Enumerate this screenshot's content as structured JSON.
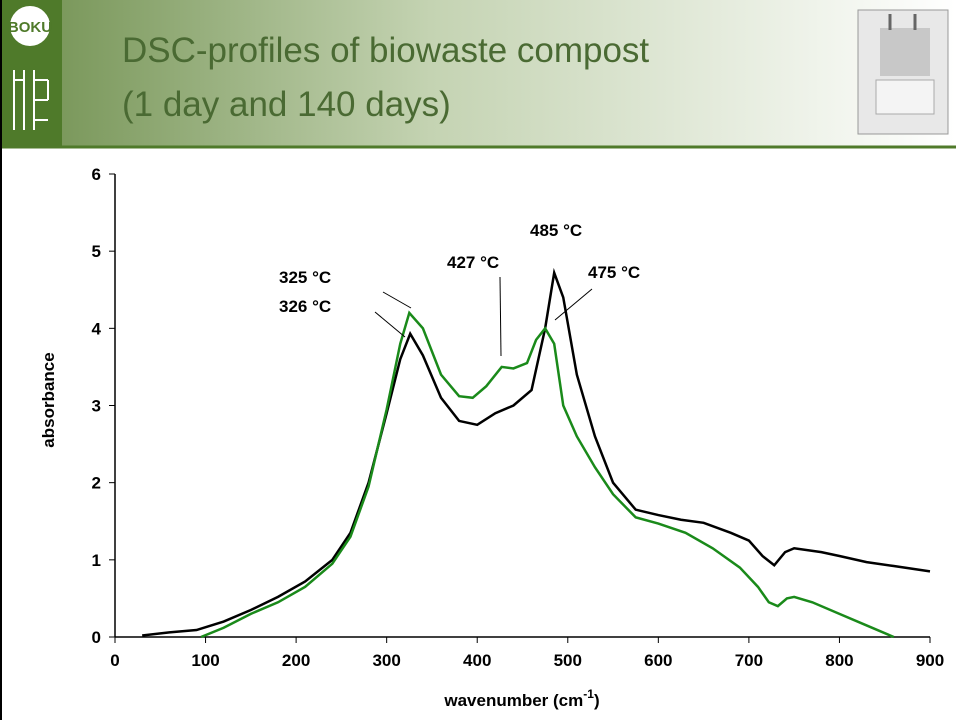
{
  "logo": "BOKU",
  "chart_data": {
    "type": "line",
    "title": "DSC-profiles of biowaste compost",
    "subtitle": "(1 day and 140 days)",
    "y_label": "absorbance",
    "x_label": [
      "wavenumber (cm",
      "-1",
      ")"
    ],
    "xlim": [
      0,
      900
    ],
    "xticks": [
      0,
      100,
      200,
      300,
      400,
      500,
      600,
      700,
      800,
      900
    ],
    "ylim": [
      0,
      6
    ],
    "yticks": [
      0,
      1,
      2,
      3,
      4,
      5,
      6
    ],
    "grid": false,
    "annotations": [
      "325 °C",
      "326 °C",
      "427 °C",
      "485 °C",
      "475 °C"
    ],
    "series": [
      {
        "color": "#000000",
        "x": [
          30,
          60,
          90,
          120,
          150,
          180,
          210,
          240,
          260,
          280,
          300,
          315,
          326,
          340,
          360,
          380,
          400,
          420,
          440,
          460,
          475,
          485,
          495,
          510,
          530,
          550,
          575,
          600,
          625,
          650,
          680,
          700,
          715,
          728,
          740,
          750,
          780,
          800,
          830,
          860,
          900
        ],
        "values": [
          0.02,
          0.06,
          0.09,
          0.2,
          0.35,
          0.52,
          0.72,
          1.0,
          1.35,
          2.0,
          2.9,
          3.6,
          3.93,
          3.65,
          3.1,
          2.8,
          2.75,
          2.9,
          3.0,
          3.2,
          4.0,
          4.72,
          4.4,
          3.4,
          2.6,
          2.0,
          1.65,
          1.58,
          1.52,
          1.48,
          1.35,
          1.25,
          1.05,
          0.93,
          1.1,
          1.15,
          1.1,
          1.05,
          0.97,
          0.92,
          0.85
        ]
      },
      {
        "color": "#1a8a1a",
        "x": [
          95,
          120,
          150,
          180,
          210,
          240,
          260,
          280,
          300,
          315,
          325,
          340,
          360,
          380,
          395,
          410,
          427,
          440,
          455,
          465,
          475,
          485,
          495,
          510,
          530,
          550,
          575,
          600,
          630,
          660,
          690,
          710,
          722,
          732,
          742,
          750,
          770,
          800,
          830,
          860
        ],
        "values": [
          0.0,
          0.12,
          0.3,
          0.45,
          0.65,
          0.95,
          1.3,
          1.95,
          2.95,
          3.8,
          4.2,
          4.0,
          3.4,
          3.12,
          3.1,
          3.25,
          3.5,
          3.48,
          3.55,
          3.85,
          4.0,
          3.8,
          3.0,
          2.6,
          2.2,
          1.85,
          1.55,
          1.47,
          1.35,
          1.15,
          0.9,
          0.65,
          0.45,
          0.4,
          0.5,
          0.52,
          0.45,
          0.3,
          0.15,
          0.0
        ]
      }
    ]
  }
}
